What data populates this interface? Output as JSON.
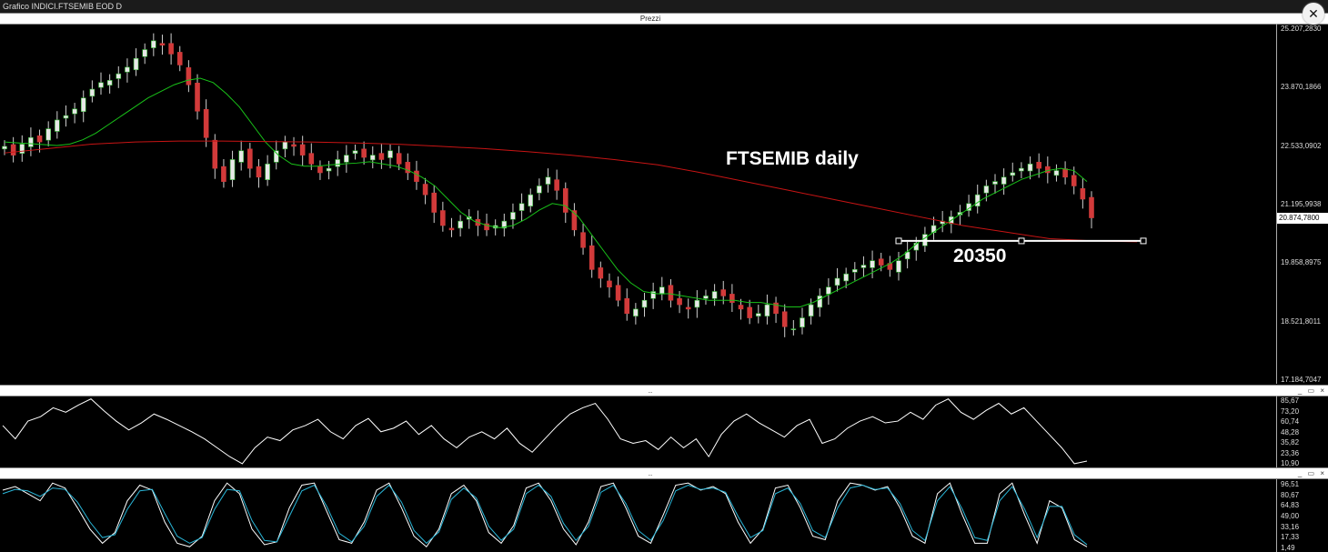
{
  "window": {
    "title": "Grafico INDICI.FTSEMIB EOD D",
    "close_icon": "close-icon"
  },
  "panels": {
    "price_label": "Prezzi",
    "rsi_label": "..",
    "stoch_label": "..",
    "controls": "_ ▭ ×"
  },
  "annotations": {
    "title": "FTSEMIB daily",
    "support_level": "20350"
  },
  "colors": {
    "up_candle": "#ffffff",
    "down_candle": "#d23a3a",
    "ma_short": "#19c119",
    "ma_long": "#c81414",
    "support_line": "#ffffff",
    "rsi_line": "#ffffff",
    "stoch_k": "#ffffff",
    "stoch_d": "#29b6d8"
  },
  "chart_data": [
    {
      "type": "candlestick",
      "title": "Prezzi",
      "last_price_label": "20.874,7800",
      "ylim": [
        17184.7047,
        25207.283
      ],
      "yticks": [
        "25.207,2830",
        "23.870,1866",
        "22.533,0902",
        "21.195,9938",
        "19.858,8975",
        "18.521,8011",
        "17.184,7047"
      ],
      "ytick_values": [
        25207.283,
        23870.1866,
        22533.0902,
        21195.9938,
        19858.8975,
        18521.8011,
        17184.7047
      ],
      "close_series": [
        22500,
        22300,
        22550,
        22700,
        22600,
        22900,
        23100,
        23200,
        23350,
        23600,
        23800,
        23950,
        24000,
        24150,
        24300,
        24500,
        24700,
        24900,
        24800,
        24600,
        24350,
        23900,
        23300,
        22700,
        22000,
        21700,
        22200,
        22400,
        22000,
        21800,
        22100,
        22400,
        22600,
        22500,
        22300,
        22100,
        21900,
        22000,
        22200,
        22300,
        22400,
        22250,
        22300,
        22200,
        22400,
        22100,
        21900,
        21700,
        21400,
        21000,
        20700,
        20600,
        20800,
        20900,
        20700,
        20600,
        20700,
        20800,
        21000,
        21200,
        21400,
        21600,
        21800,
        21500,
        21000,
        20600,
        20200,
        19700,
        19500,
        19300,
        19000,
        18700,
        18800,
        19000,
        19200,
        19300,
        19000,
        18900,
        18800,
        19000,
        19100,
        19200,
        19100,
        18950,
        18800,
        18600,
        18700,
        18900,
        18700,
        18400,
        18350,
        18600,
        18900,
        19100,
        19300,
        19500,
        19600,
        19700,
        19800,
        19900,
        19800,
        19700,
        19900,
        20100,
        20300,
        20500,
        20700,
        20800,
        20900,
        21000,
        21200,
        21400,
        21600,
        21700,
        21800,
        21900,
        22000,
        22100,
        22000,
        21900,
        21950,
        21800,
        21600,
        21300,
        20875
      ],
      "series": [
        {
          "name": "",
          "values": [
            22600,
            22580,
            22560,
            22540,
            22520,
            22550,
            22650,
            22800,
            23000,
            23200,
            23400,
            23600,
            23750,
            23900,
            24000,
            24050,
            23950,
            23700,
            23400,
            23000,
            22600,
            22300,
            22100,
            22050,
            22050,
            22080,
            22100,
            22120,
            22150,
            22100,
            22050,
            21950,
            21800,
            21600,
            21300,
            21000,
            20800,
            20700,
            20650,
            20700,
            20850,
            21050,
            21200,
            21150,
            20900,
            20500,
            20100,
            19700,
            19400,
            19200,
            19150,
            19150,
            19100,
            19050,
            19000,
            19000,
            19000,
            18950,
            18950,
            18900,
            18850,
            18850,
            18950,
            19100,
            19250,
            19400,
            19550,
            19700,
            19850,
            20050,
            20300,
            20500,
            20700,
            20900,
            21100,
            21300,
            21450,
            21600,
            21750,
            21850,
            21950,
            22000,
            21950,
            21700
          ]
        },
        {
          "name": "",
          "values": [
            22350,
            22450,
            22550,
            22600,
            22620,
            22620,
            22610,
            22600,
            22580,
            22550,
            22500,
            22450,
            22380,
            22300,
            22200,
            22080,
            21900,
            21700,
            21500,
            21300,
            21100,
            20900,
            20700,
            20550,
            20400,
            20350,
            20330
          ]
        }
      ],
      "support_line": 20350
    },
    {
      "type": "line",
      "title": "",
      "ylim": [
        10.9,
        85.67
      ],
      "yticks": [
        "85,67",
        "73,20",
        "60,74",
        "48,28",
        "35,82",
        "23,36",
        "10,90"
      ],
      "values": [
        55,
        40,
        60,
        65,
        75,
        70,
        78,
        85,
        72,
        60,
        50,
        58,
        68,
        62,
        55,
        48,
        40,
        30,
        20,
        12,
        30,
        42,
        38,
        50,
        55,
        62,
        48,
        40,
        55,
        63,
        48,
        52,
        60,
        45,
        55,
        40,
        30,
        42,
        48,
        40,
        52,
        35,
        25,
        40,
        55,
        68,
        75,
        80,
        62,
        40,
        35,
        38,
        28,
        42,
        30,
        40,
        20,
        45,
        60,
        68,
        58,
        50,
        42,
        55,
        62,
        35,
        40,
        52,
        60,
        65,
        58,
        60,
        70,
        62,
        78,
        85,
        70,
        62,
        72,
        80,
        68,
        75,
        60,
        45,
        30,
        12,
        15
      ]
    },
    {
      "type": "line",
      "title": "",
      "ylim": [
        1.49,
        96.51
      ],
      "yticks": [
        "96,51",
        "80,67",
        "64,83",
        "49,00",
        "33,16",
        "17,33",
        "1,49"
      ],
      "series": [
        {
          "name": "",
          "values": [
            85,
            90,
            80,
            70,
            95,
            88,
            60,
            30,
            10,
            25,
            70,
            92,
            85,
            40,
            10,
            5,
            20,
            70,
            95,
            80,
            30,
            8,
            12,
            60,
            92,
            95,
            55,
            15,
            10,
            40,
            85,
            95,
            60,
            20,
            5,
            30,
            80,
            92,
            70,
            25,
            10,
            35,
            88,
            95,
            70,
            30,
            8,
            40,
            90,
            95,
            60,
            20,
            10,
            50,
            92,
            95,
            85,
            90,
            80,
            40,
            10,
            30,
            88,
            92,
            60,
            20,
            15,
            70,
            95,
            92,
            85,
            90,
            60,
            20,
            10,
            80,
            95,
            50,
            10,
            10,
            80,
            95,
            50,
            10,
            70,
            60,
            15,
            5
          ]
        },
        {
          "name": "",
          "values": [
            80,
            86,
            84,
            76,
            88,
            86,
            68,
            40,
            18,
            22,
            58,
            84,
            86,
            52,
            20,
            10,
            18,
            58,
            86,
            84,
            42,
            14,
            12,
            48,
            84,
            92,
            62,
            24,
            12,
            34,
            76,
            92,
            68,
            28,
            10,
            26,
            72,
            88,
            74,
            34,
            14,
            30,
            80,
            92,
            76,
            38,
            14,
            34,
            82,
            92,
            66,
            28,
            14,
            42,
            84,
            92,
            86,
            88,
            82,
            48,
            18,
            28,
            80,
            88,
            66,
            28,
            18,
            60,
            88,
            92,
            86,
            88,
            66,
            28,
            14,
            70,
            90,
            58,
            18,
            14,
            70,
            90,
            58,
            18,
            62,
            62,
            22,
            8
          ]
        }
      ]
    }
  ]
}
